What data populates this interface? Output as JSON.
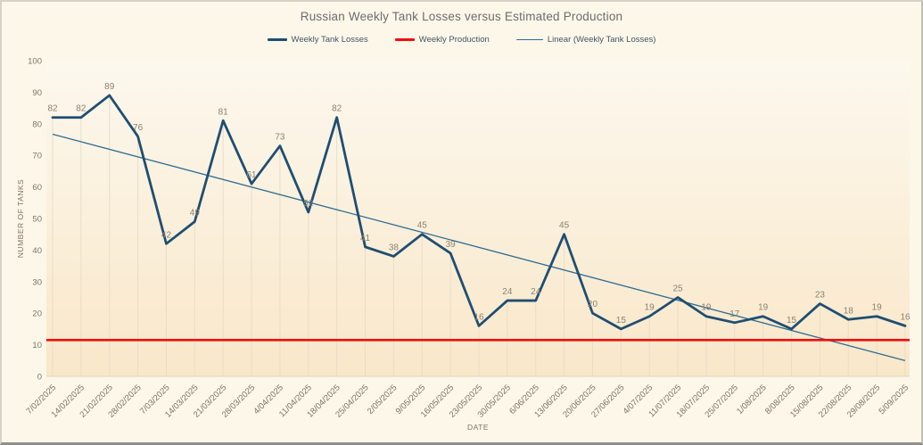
{
  "chart_data": {
    "type": "line",
    "title": "Russian Weekly Tank Losses versus Estimated Production",
    "xlabel": "DATE",
    "ylabel": "NUMBER OF TANKS",
    "ylim": [
      0,
      100
    ],
    "ytick_step": 10,
    "legend_position": "top-center",
    "grid": "vertical-drop-lines-per-point",
    "data_labels": true,
    "categories": [
      "7/02/2025",
      "14/02/2025",
      "21/02/2025",
      "28/02/2025",
      "7/03/2025",
      "14/03/2025",
      "21/03/2025",
      "28/03/2025",
      "4/04/2025",
      "11/04/2025",
      "18/04/2025",
      "25/04/2025",
      "2/05/2025",
      "9/05/2025",
      "16/05/2025",
      "23/05/2025",
      "30/05/2025",
      "6/06/2025",
      "13/06/2025",
      "20/06/2025",
      "27/06/2025",
      "4/07/2025",
      "11/07/2025",
      "18/07/2025",
      "25/07/2025",
      "1/08/2025",
      "8/08/2025",
      "15/08/2025",
      "22/08/2025",
      "29/08/2025",
      "5/09/2025"
    ],
    "series": [
      {
        "name": "Weekly Tank Losses",
        "kind": "line",
        "color": "#1F4E72",
        "line_width": 2.8,
        "values": [
          82,
          82,
          89,
          76,
          42,
          49,
          81,
          61,
          73,
          52,
          82,
          41,
          38,
          45,
          39,
          16,
          24,
          24,
          45,
          20,
          15,
          19,
          25,
          19,
          17,
          19,
          15,
          23,
          18,
          19,
          16
        ]
      },
      {
        "name": "Weekly Production",
        "kind": "constant-line",
        "color": "#F10D0D",
        "line_width": 2.6,
        "value": 11.5
      },
      {
        "name": "Linear (Weekly Tank Losses)",
        "kind": "linear-trendline",
        "color": "#2F6D92",
        "line_width": 1.3,
        "source_series": "Weekly Tank Losses"
      }
    ]
  },
  "style": {
    "background": "#FCF7E9",
    "plot_gradient_top": "#FCF8EE",
    "plot_gradient_bottom": "#F9E7C9",
    "dropline_color": "#E8DEC6",
    "axis_line_color": "#E0D5BE",
    "title_color": "#6D6D6D",
    "legend_text_color": "#44546A",
    "tick_label_color": "#7D7565",
    "data_label_color": "#8A8270"
  }
}
